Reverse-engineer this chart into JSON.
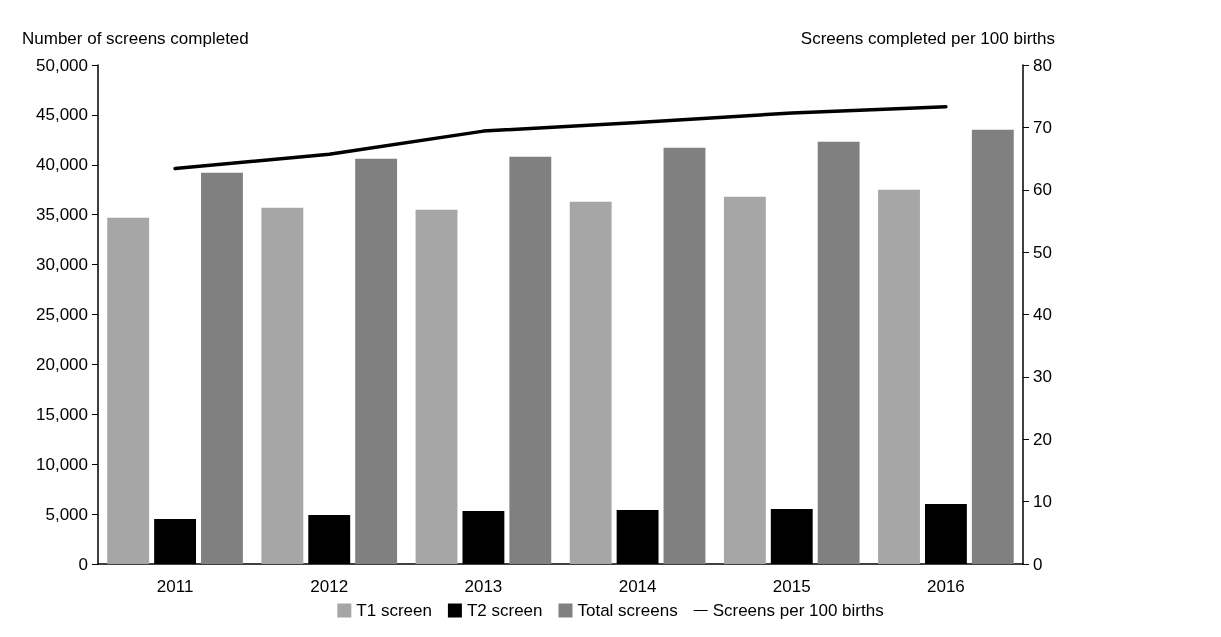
{
  "chart_data": {
    "type": "bar",
    "categories": [
      "2011",
      "2012",
      "2013",
      "2014",
      "2015",
      "2016"
    ],
    "ylabel": "Number of screens completed",
    "y2label": "Screens completed per 100 births",
    "series": [
      {
        "name": "T1 screen",
        "color": "#a6a6a6",
        "values": [
          34700,
          35700,
          35500,
          36300,
          36800,
          37500
        ]
      },
      {
        "name": "T2 screen",
        "color": "#000000",
        "values": [
          4500,
          4900,
          5300,
          5400,
          5500,
          6000
        ]
      },
      {
        "name": "Total screens",
        "color": "#808080",
        "values": [
          39200,
          40600,
          40800,
          41700,
          42300,
          43500
        ]
      },
      {
        "name": "Screens per 100 births",
        "type": "line",
        "axis": "y2",
        "color": "#000000",
        "values": [
          63.4,
          65.7,
          69.4,
          70.8,
          72.3,
          73.3
        ]
      }
    ],
    "ylim": [
      0,
      50000
    ],
    "yticks": [
      0,
      {
        "value": 5000,
        "label": "5,000"
      },
      {
        "value": 10000,
        "label": "10,000"
      },
      {
        "value": 15000,
        "label": "15,000"
      },
      {
        "value": 20000,
        "label": "20,000"
      },
      {
        "value": 25000,
        "label": "25,000"
      },
      {
        "value": 30000,
        "label": "30,000"
      },
      {
        "value": 35000,
        "label": "35,000"
      },
      {
        "value": 40000,
        "label": "40,000"
      },
      {
        "value": 45000,
        "label": "45,000"
      },
      {
        "value": 50000,
        "label": "50,000"
      }
    ],
    "y2lim": [
      0,
      80
    ],
    "y2ticks": [
      0,
      10,
      20,
      30,
      40,
      50,
      60,
      70,
      80
    ],
    "grid": false,
    "legend": "bottom",
    "marker": "none",
    "line_style": "solid"
  }
}
